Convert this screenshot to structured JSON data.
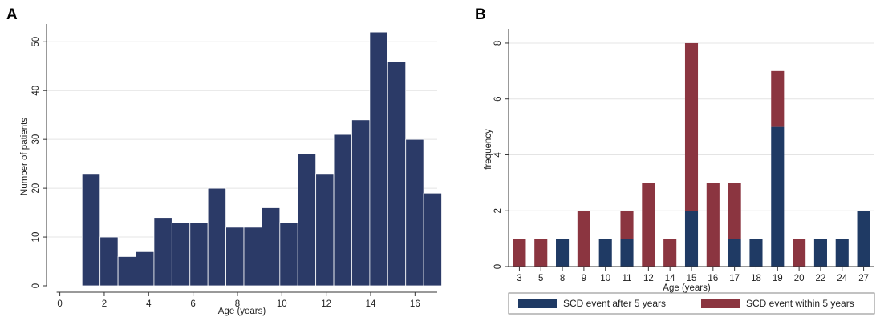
{
  "chart_data": [
    {
      "panel": "A",
      "type": "bar",
      "xlabel": "Age (years)",
      "ylabel": "Number of patients",
      "xlim": [
        -0.6,
        17
      ],
      "ylim": [
        0,
        53
      ],
      "xticks": [
        0,
        2,
        4,
        6,
        8,
        10,
        12,
        14,
        16
      ],
      "yticks": [
        0,
        10,
        20,
        30,
        40,
        50
      ],
      "bin_width": 0.81,
      "bins": [
        {
          "x0": 1.0,
          "value": 23
        },
        {
          "x0": 1.81,
          "value": 10
        },
        {
          "x0": 2.62,
          "value": 6
        },
        {
          "x0": 3.43,
          "value": 7
        },
        {
          "x0": 4.24,
          "value": 14
        },
        {
          "x0": 5.05,
          "value": 13
        },
        {
          "x0": 5.86,
          "value": 13
        },
        {
          "x0": 6.67,
          "value": 20
        },
        {
          "x0": 7.48,
          "value": 12
        },
        {
          "x0": 8.29,
          "value": 12
        },
        {
          "x0": 9.1,
          "value": 16
        },
        {
          "x0": 9.91,
          "value": 13
        },
        {
          "x0": 10.72,
          "value": 27
        },
        {
          "x0": 11.53,
          "value": 23
        },
        {
          "x0": 12.34,
          "value": 31
        },
        {
          "x0": 13.15,
          "value": 34
        },
        {
          "x0": 13.96,
          "value": 52
        },
        {
          "x0": 14.77,
          "value": 46
        },
        {
          "x0": 15.58,
          "value": 30
        },
        {
          "x0": 16.39,
          "value": 19
        }
      ],
      "grid": true,
      "color": "#2b3a67"
    },
    {
      "panel": "B",
      "type": "bar",
      "stacked": true,
      "xlabel": "Age (years)",
      "ylabel": "frequency",
      "ylim": [
        0,
        8.4
      ],
      "yticks": [
        0,
        2,
        4,
        6,
        8
      ],
      "categories": [
        "3",
        "5",
        "8",
        "9",
        "10",
        "11",
        "12",
        "14",
        "15",
        "16",
        "17",
        "18",
        "19",
        "20",
        "22",
        "24",
        "27"
      ],
      "series": [
        {
          "name": "SCD event after 5 years",
          "color": "#1f3a64",
          "values": [
            0,
            0,
            1,
            0,
            1,
            1,
            0,
            0,
            2,
            0,
            1,
            1,
            5,
            0,
            1,
            1,
            2
          ]
        },
        {
          "name": "SCD event within 5 years",
          "color": "#8b3540",
          "values": [
            1,
            1,
            0,
            2,
            0,
            1,
            3,
            1,
            6,
            3,
            2,
            0,
            2,
            1,
            0,
            0,
            0
          ]
        }
      ],
      "grid": true,
      "legend_position": "bottom"
    }
  ]
}
